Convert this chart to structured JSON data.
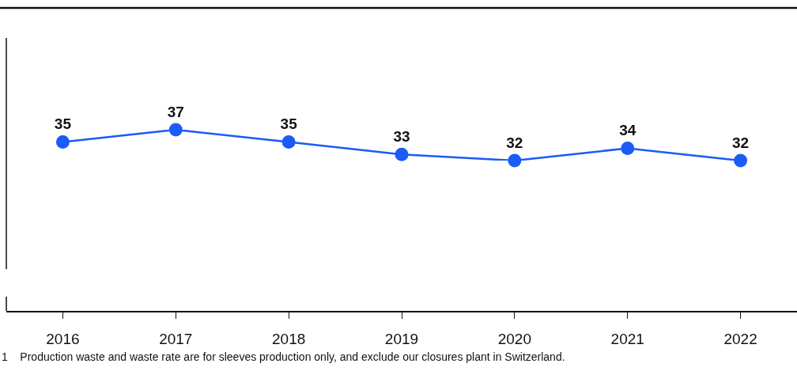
{
  "chart_data": {
    "type": "line",
    "categories": [
      "2016",
      "2017",
      "2018",
      "2019",
      "2020",
      "2021",
      "2022"
    ],
    "series": [
      {
        "color": "#1a5cf5",
        "values": [
          35,
          37,
          35,
          33,
          32,
          34,
          32
        ]
      }
    ],
    "data_labels": true,
    "marker": "circle",
    "line_style": "solid",
    "grid": false,
    "legend": false,
    "tick_labels": "x",
    "annotations": [
      "1    Production waste and waste rate are for sleeves production only, and exclude our closures plant in Switzerland."
    ]
  }
}
